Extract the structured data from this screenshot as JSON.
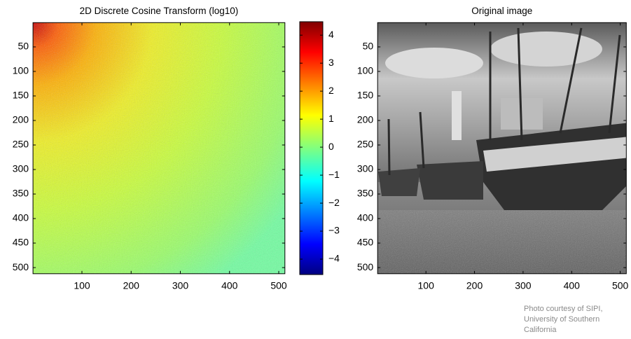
{
  "chart_data": [
    {
      "type": "heatmap",
      "title": "2D Discrete Cosine Transform (log10)",
      "xlim": [
        0.5,
        512.5
      ],
      "ylim": [
        0.5,
        512.5
      ],
      "y_reversed": true,
      "xticks": [
        100,
        200,
        300,
        400,
        500
      ],
      "yticks": [
        50,
        100,
        150,
        200,
        250,
        300,
        350,
        400,
        450,
        500
      ],
      "colormap": "jet",
      "colorbar": {
        "lim": [
          -4.55,
          4.48
        ],
        "ticks": [
          {
            "value": -4,
            "label": "−4"
          },
          {
            "value": -3,
            "label": "−3"
          },
          {
            "value": -2,
            "label": "−2"
          },
          {
            "value": -1,
            "label": "−1"
          },
          0,
          1,
          2,
          3,
          4
        ]
      }
    },
    {
      "type": "image",
      "title": "Original image",
      "xlim": [
        0.5,
        512.5
      ],
      "ylim": [
        0.5,
        512.5
      ],
      "y_reversed": true,
      "xticks": [
        100,
        200,
        300,
        400,
        500
      ],
      "yticks": [
        50,
        100,
        150,
        200,
        250,
        300,
        350,
        400,
        450,
        500
      ]
    }
  ],
  "footnote": [
    "Photo courtesy of SIPI,",
    "University of Southern",
    "California"
  ]
}
